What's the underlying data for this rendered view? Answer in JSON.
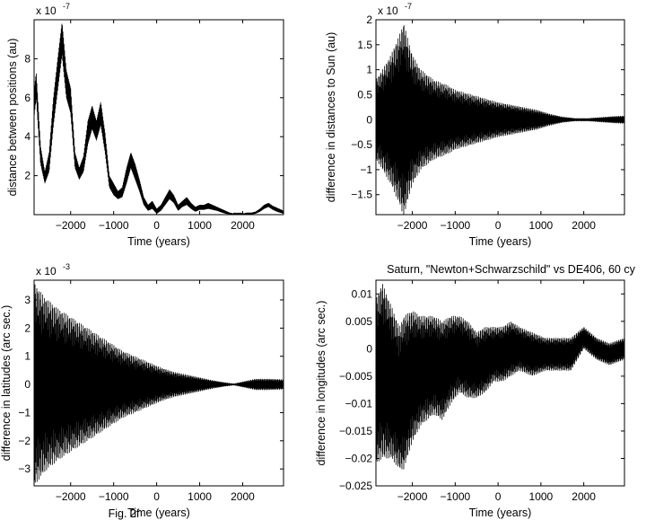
{
  "figure": {
    "caption": "Fig. 2f"
  },
  "chart_data": [
    {
      "type": "line",
      "title": "",
      "xlabel": "Time (years)",
      "ylabel": "distance between positions (au)",
      "exponent_label": "x 10",
      "exponent_power": "-7",
      "xlim": [
        -2850,
        2950
      ],
      "ylim": [
        0,
        10
      ],
      "xticks": [
        -2000,
        -1000,
        0,
        1000,
        2000
      ],
      "xtick_labels": [
        "−2000",
        "−1000",
        "0",
        "1000",
        "2000"
      ],
      "yticks": [
        2,
        4,
        6,
        8
      ],
      "ytick_labels": [
        "2",
        "4",
        "6",
        "8"
      ],
      "grid": false,
      "series": [
        {
          "kind": "envelope",
          "x": [
            -2850,
            -2800,
            -2700,
            -2600,
            -2500,
            -2400,
            -2300,
            -2200,
            -2100,
            -2000,
            -1900,
            -1800,
            -1700,
            -1600,
            -1500,
            -1400,
            -1300,
            -1200,
            -1100,
            -1000,
            -900,
            -800,
            -700,
            -600,
            -500,
            -400,
            -300,
            -200,
            -100,
            0,
            100,
            200,
            300,
            400,
            500,
            600,
            700,
            800,
            900,
            1000,
            1100,
            1200,
            1300,
            1400,
            1500,
            1600,
            1700,
            1800,
            1900,
            2000,
            2100,
            2200,
            2300,
            2400,
            2500,
            2600,
            2700,
            2800,
            2900,
            2950
          ],
          "upper": [
            6.4,
            7.3,
            3.5,
            2.2,
            3.2,
            6.0,
            8.0,
            9.9,
            7.4,
            6.5,
            3.2,
            2.4,
            3.0,
            4.8,
            5.6,
            4.8,
            5.8,
            4.2,
            2.0,
            1.6,
            1.2,
            1.4,
            2.4,
            3.2,
            2.6,
            1.8,
            0.9,
            0.5,
            0.7,
            0.3,
            0.5,
            0.9,
            1.3,
            1.0,
            0.5,
            0.7,
            0.9,
            0.6,
            0.4,
            0.5,
            0.5,
            0.6,
            0.5,
            0.4,
            0.3,
            0.2,
            0.1,
            0.05,
            0.05,
            0.05,
            0.1,
            0.1,
            0.15,
            0.3,
            0.5,
            0.6,
            0.45,
            0.35,
            0.25,
            0.2
          ],
          "lower": [
            5.0,
            6.0,
            2.6,
            1.6,
            2.2,
            4.6,
            6.4,
            8.2,
            6.0,
            5.2,
            2.4,
            1.8,
            2.2,
            3.6,
            4.4,
            3.8,
            4.6,
            3.2,
            1.4,
            1.0,
            0.8,
            0.9,
            1.6,
            2.4,
            1.8,
            1.2,
            0.5,
            0.2,
            0.3,
            0.05,
            0.2,
            0.5,
            0.8,
            0.6,
            0.2,
            0.4,
            0.5,
            0.3,
            0.15,
            0.25,
            0.25,
            0.3,
            0.25,
            0.2,
            0.12,
            0.05,
            0.02,
            0.0,
            0.0,
            0.0,
            0.02,
            0.02,
            0.05,
            0.15,
            0.3,
            0.4,
            0.25,
            0.15,
            0.08,
            0.05
          ]
        }
      ]
    },
    {
      "type": "line",
      "title": "",
      "xlabel": "Time (years)",
      "ylabel": "difference in distances to Sun (au)",
      "exponent_label": "x 10",
      "exponent_power": "-7",
      "xlim": [
        -2850,
        2950
      ],
      "ylim": [
        -1.9,
        2.0
      ],
      "xticks": [
        -2000,
        -1000,
        0,
        1000,
        2000
      ],
      "xtick_labels": [
        "−2000",
        "−1000",
        "0",
        "1000",
        "2000"
      ],
      "yticks": [
        -1.5,
        -1,
        -0.5,
        0,
        0.5,
        1,
        1.5,
        2
      ],
      "ytick_labels": [
        "−1.5",
        "−1",
        "−0.5",
        "0",
        "0.5",
        "1",
        "1.5",
        "2"
      ],
      "grid": false,
      "series": [
        {
          "kind": "oscillation",
          "center": 0.0,
          "x": [
            -2850,
            -2700,
            -2500,
            -2300,
            -2200,
            -2100,
            -2000,
            -1800,
            -1500,
            -1200,
            -1000,
            -800,
            -600,
            -400,
            -200,
            0,
            300,
            600,
            900,
            1200,
            1500,
            1800,
            2100,
            2400,
            2700,
            2950
          ],
          "amp": [
            0.8,
            1.0,
            1.3,
            1.7,
            1.95,
            1.6,
            1.3,
            1.0,
            0.8,
            0.7,
            0.6,
            0.55,
            0.5,
            0.45,
            0.4,
            0.35,
            0.3,
            0.25,
            0.2,
            0.12,
            0.06,
            0.03,
            0.03,
            0.05,
            0.07,
            0.08
          ]
        }
      ]
    },
    {
      "type": "line",
      "title": "",
      "xlabel": "Time (years)",
      "ylabel": "difference in latitudes (arc sec.)",
      "exponent_label": "x 10",
      "exponent_power": "-3",
      "xlim": [
        -2850,
        2950
      ],
      "ylim": [
        -3.6,
        3.7
      ],
      "xticks": [
        -2000,
        -1000,
        0,
        1000,
        2000
      ],
      "xtick_labels": [
        "−2000",
        "−1000",
        "0",
        "1000",
        "2000"
      ],
      "yticks": [
        -3,
        -2,
        -1,
        0,
        1,
        2,
        3
      ],
      "ytick_labels": [
        "−3",
        "−2",
        "−1",
        "0",
        "1",
        "2",
        "3"
      ],
      "grid": false,
      "series": [
        {
          "kind": "oscillation",
          "center": 0.0,
          "x": [
            -2850,
            -2600,
            -2300,
            -2000,
            -1700,
            -1400,
            -1100,
            -800,
            -500,
            -200,
            100,
            400,
            700,
            1000,
            1300,
            1600,
            1800,
            2000,
            2300,
            2600,
            2950
          ],
          "amp": [
            3.6,
            3.1,
            2.7,
            2.4,
            2.1,
            1.8,
            1.5,
            1.2,
            1.0,
            0.8,
            0.6,
            0.45,
            0.35,
            0.25,
            0.15,
            0.07,
            0.03,
            0.1,
            0.2,
            0.2,
            0.18
          ]
        }
      ]
    },
    {
      "type": "line",
      "title": "Saturn, \"Newton+Schwarzschild\" vs DE406, 60 cy",
      "xlabel": "Time (years)",
      "ylabel": "difference in longitudes (arc sec.)",
      "exponent_label": "",
      "exponent_power": "",
      "xlim": [
        -2850,
        2950
      ],
      "ylim": [
        -0.025,
        0.0125
      ],
      "xticks": [
        -2000,
        -1000,
        0,
        1000,
        2000
      ],
      "xtick_labels": [
        "−2000",
        "−1000",
        "0",
        "1000",
        "2000"
      ],
      "yticks": [
        -0.025,
        -0.02,
        -0.015,
        -0.01,
        -0.005,
        0,
        0.005,
        0.01
      ],
      "ytick_labels": [
        "−0.025",
        "−0.02",
        "−0.015",
        "−0.01",
        "−0.005",
        "0",
        "0.005",
        "0.01"
      ],
      "grid": false,
      "series": [
        {
          "kind": "oscillation",
          "x": [
            -2850,
            -2700,
            -2500,
            -2300,
            -2200,
            -2000,
            -1800,
            -1500,
            -1300,
            -1100,
            -900,
            -700,
            -500,
            -300,
            -100,
            100,
            300,
            500,
            800,
            1100,
            1400,
            1700,
            2000,
            2300,
            2600,
            2950
          ],
          "center": [
            -0.006,
            -0.004,
            -0.006,
            -0.009,
            -0.008,
            -0.005,
            -0.004,
            -0.003,
            -0.004,
            -0.002,
            -0.001,
            -0.002,
            -0.003,
            -0.002,
            -0.001,
            -0.001,
            0.0,
            0.0,
            -0.001,
            -0.001,
            -0.001,
            -0.001,
            0.002,
            0.0,
            -0.001,
            0.0
          ],
          "amp": [
            0.015,
            0.016,
            0.014,
            0.013,
            0.014,
            0.012,
            0.01,
            0.009,
            0.009,
            0.008,
            0.007,
            0.007,
            0.006,
            0.006,
            0.005,
            0.005,
            0.005,
            0.004,
            0.004,
            0.003,
            0.003,
            0.003,
            0.002,
            0.002,
            0.002,
            0.002
          ]
        }
      ]
    }
  ]
}
